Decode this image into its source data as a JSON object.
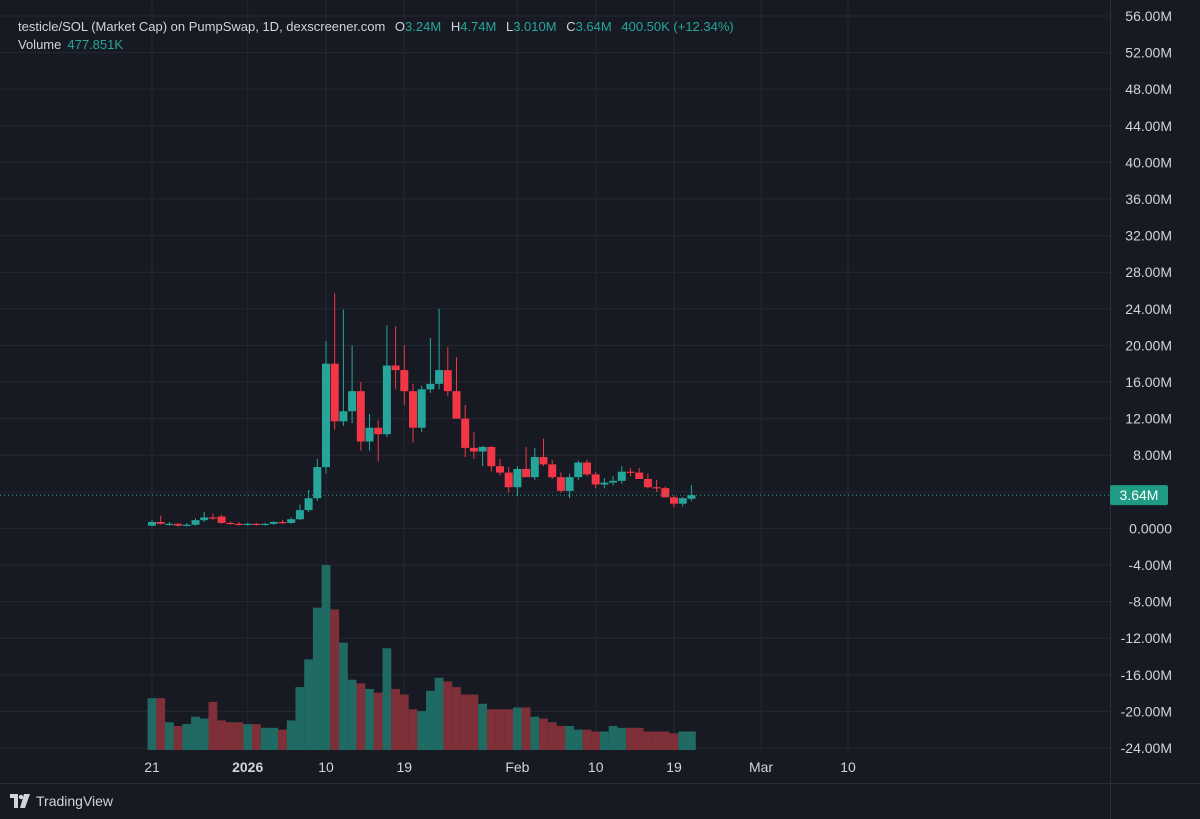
{
  "legend": {
    "title": "testicle/SOL (Market Cap) on PumpSwap, 1D, dexscreener.com",
    "open_label": "O",
    "open": "3.24M",
    "high_label": "H",
    "high": "4.74M",
    "low_label": "L",
    "low": "3.010M",
    "close_label": "C",
    "close": "3.64M",
    "change": "400.50K (+12.34%)",
    "volume_label": "Volume",
    "volume": "477.851K"
  },
  "footer": {
    "brand": "TradingView"
  },
  "colors": {
    "up": "#26a69a",
    "down": "#f23645",
    "up_vol": "#1f6b63",
    "down_vol": "#7e2f37",
    "grid": "#252833",
    "text": "#d1d4dc",
    "price_tag": "#1f9c83"
  },
  "chart_data": {
    "type": "candlestick",
    "price_axis": {
      "ylim": [
        -24000000,
        56000000
      ],
      "ticks": [
        56000000,
        52000000,
        48000000,
        44000000,
        40000000,
        36000000,
        32000000,
        28000000,
        24000000,
        20000000,
        16000000,
        12000000,
        8000000,
        4000000,
        0,
        -4000000,
        -8000000,
        -12000000,
        -16000000,
        -20000000,
        -24000000
      ],
      "tick_labels": [
        "56.00M",
        "52.00M",
        "48.00M",
        "44.00M",
        "40.00M",
        "36.00M",
        "32.00M",
        "28.00M",
        "24.00M",
        "20.00M",
        "16.00M",
        "12.00M",
        "8.00M",
        "",
        "0.0000",
        "-4.00M",
        "-8.00M",
        "-12.00M",
        "-16.00M",
        "-20.00M",
        "-24.00M"
      ]
    },
    "x_axis": {
      "labels": [
        {
          "label": "21",
          "day": 0,
          "bold": false
        },
        {
          "label": "2026",
          "day": 11,
          "bold": true
        },
        {
          "label": "10",
          "day": 20,
          "bold": false
        },
        {
          "label": "19",
          "day": 29,
          "bold": false
        },
        {
          "label": "Feb",
          "day": 42,
          "bold": false
        },
        {
          "label": "10",
          "day": 51,
          "bold": false
        },
        {
          "label": "19",
          "day": 60,
          "bold": false
        },
        {
          "label": "Mar",
          "day": 70,
          "bold": false
        },
        {
          "label": "10",
          "day": 80,
          "bold": false
        }
      ],
      "total_days": 86
    },
    "current_price": {
      "value": 3640000,
      "label": "3.64M"
    },
    "candles": [
      {
        "o": 0.3,
        "h": 0.9,
        "l": 0.2,
        "c": 0.7
      },
      {
        "o": 0.7,
        "h": 1.4,
        "l": 0.4,
        "c": 0.5
      },
      {
        "o": 0.5,
        "h": 0.7,
        "l": 0.3,
        "c": 0.5
      },
      {
        "o": 0.5,
        "h": 0.6,
        "l": 0.2,
        "c": 0.3
      },
      {
        "o": 0.3,
        "h": 0.6,
        "l": 0.2,
        "c": 0.4
      },
      {
        "o": 0.4,
        "h": 1.1,
        "l": 0.3,
        "c": 0.9
      },
      {
        "o": 0.9,
        "h": 1.8,
        "l": 0.7,
        "c": 1.2
      },
      {
        "o": 1.2,
        "h": 1.6,
        "l": 0.9,
        "c": 1.1
      },
      {
        "o": 1.3,
        "h": 1.5,
        "l": 0.5,
        "c": 0.6
      },
      {
        "o": 0.6,
        "h": 0.8,
        "l": 0.4,
        "c": 0.5
      },
      {
        "o": 0.5,
        "h": 0.7,
        "l": 0.3,
        "c": 0.4
      },
      {
        "o": 0.4,
        "h": 0.6,
        "l": 0.3,
        "c": 0.5
      },
      {
        "o": 0.5,
        "h": 0.6,
        "l": 0.3,
        "c": 0.4
      },
      {
        "o": 0.4,
        "h": 0.6,
        "l": 0.3,
        "c": 0.5
      },
      {
        "o": 0.5,
        "h": 0.8,
        "l": 0.4,
        "c": 0.7
      },
      {
        "o": 0.7,
        "h": 0.9,
        "l": 0.5,
        "c": 0.6
      },
      {
        "o": 0.6,
        "h": 1.2,
        "l": 0.5,
        "c": 1.0
      },
      {
        "o": 1.0,
        "h": 2.6,
        "l": 0.9,
        "c": 2.0
      },
      {
        "o": 2.0,
        "h": 4.2,
        "l": 1.8,
        "c": 3.3
      },
      {
        "o": 3.3,
        "h": 7.6,
        "l": 3.0,
        "c": 6.7
      },
      {
        "o": 6.7,
        "h": 20.5,
        "l": 6.0,
        "c": 18.0
      },
      {
        "o": 18.0,
        "h": 25.7,
        "l": 10.8,
        "c": 11.7
      },
      {
        "o": 11.7,
        "h": 23.9,
        "l": 11.2,
        "c": 12.8
      },
      {
        "o": 12.8,
        "h": 20.0,
        "l": 11.5,
        "c": 15.0
      },
      {
        "o": 15.0,
        "h": 16.0,
        "l": 8.5,
        "c": 9.5
      },
      {
        "o": 9.5,
        "h": 12.5,
        "l": 8.5,
        "c": 11.0
      },
      {
        "o": 11.0,
        "h": 11.8,
        "l": 7.3,
        "c": 10.3
      },
      {
        "o": 10.3,
        "h": 22.2,
        "l": 10.0,
        "c": 17.8
      },
      {
        "o": 17.8,
        "h": 22.1,
        "l": 15.2,
        "c": 17.3
      },
      {
        "o": 17.3,
        "h": 20.0,
        "l": 13.5,
        "c": 15.0
      },
      {
        "o": 15.0,
        "h": 15.8,
        "l": 9.4,
        "c": 11.0
      },
      {
        "o": 11.0,
        "h": 15.6,
        "l": 10.5,
        "c": 15.2
      },
      {
        "o": 15.2,
        "h": 20.8,
        "l": 14.8,
        "c": 15.8
      },
      {
        "o": 15.8,
        "h": 24.0,
        "l": 15.2,
        "c": 17.3
      },
      {
        "o": 17.3,
        "h": 19.8,
        "l": 14.5,
        "c": 15.0
      },
      {
        "o": 15.0,
        "h": 18.7,
        "l": 12.0,
        "c": 12.0
      },
      {
        "o": 12.0,
        "h": 13.5,
        "l": 7.8,
        "c": 8.8
      },
      {
        "o": 8.8,
        "h": 10.5,
        "l": 7.6,
        "c": 8.4
      },
      {
        "o": 8.4,
        "h": 9.0,
        "l": 6.8,
        "c": 8.9
      },
      {
        "o": 8.9,
        "h": 9.0,
        "l": 6.2,
        "c": 6.8
      },
      {
        "o": 6.8,
        "h": 7.6,
        "l": 5.8,
        "c": 6.1
      },
      {
        "o": 6.1,
        "h": 6.7,
        "l": 3.9,
        "c": 4.5
      },
      {
        "o": 4.5,
        "h": 6.8,
        "l": 3.5,
        "c": 6.5
      },
      {
        "o": 6.5,
        "h": 8.9,
        "l": 5.8,
        "c": 5.6
      },
      {
        "o": 5.6,
        "h": 8.8,
        "l": 5.3,
        "c": 7.8
      },
      {
        "o": 7.8,
        "h": 9.8,
        "l": 6.8,
        "c": 7.0
      },
      {
        "o": 7.0,
        "h": 7.5,
        "l": 5.4,
        "c": 5.6
      },
      {
        "o": 5.6,
        "h": 6.1,
        "l": 3.9,
        "c": 4.1
      },
      {
        "o": 4.1,
        "h": 6.0,
        "l": 3.3,
        "c": 5.6
      },
      {
        "o": 5.6,
        "h": 7.4,
        "l": 5.3,
        "c": 7.2
      },
      {
        "o": 7.2,
        "h": 7.5,
        "l": 5.7,
        "c": 5.9
      },
      {
        "o": 5.9,
        "h": 6.2,
        "l": 4.4,
        "c": 4.8
      },
      {
        "o": 4.8,
        "h": 5.5,
        "l": 4.4,
        "c": 5.0
      },
      {
        "o": 5.0,
        "h": 5.7,
        "l": 4.7,
        "c": 5.2
      },
      {
        "o": 5.2,
        "h": 6.8,
        "l": 4.9,
        "c": 6.2
      },
      {
        "o": 6.2,
        "h": 6.6,
        "l": 5.7,
        "c": 6.1
      },
      {
        "o": 6.1,
        "h": 6.6,
        "l": 5.5,
        "c": 5.4
      },
      {
        "o": 5.4,
        "h": 6.0,
        "l": 4.4,
        "c": 4.5
      },
      {
        "o": 4.5,
        "h": 5.3,
        "l": 4.0,
        "c": 4.4
      },
      {
        "o": 4.4,
        "h": 4.6,
        "l": 3.4,
        "c": 3.4
      },
      {
        "o": 3.4,
        "h": 3.6,
        "l": 2.3,
        "c": 2.7
      },
      {
        "o": 2.7,
        "h": 3.4,
        "l": 2.4,
        "c": 3.3
      },
      {
        "o": 3.24,
        "h": 4.74,
        "l": 3.01,
        "c": 3.64
      }
    ],
    "volume_scale_max": 100,
    "volumes": [
      28,
      28,
      15,
      13,
      14,
      18,
      17,
      26,
      16,
      15,
      15,
      14,
      14,
      12,
      12,
      11,
      16,
      34,
      49,
      77,
      100,
      76,
      58,
      38,
      36,
      33,
      31,
      55,
      33,
      30,
      22,
      21,
      32,
      39,
      37,
      34,
      30,
      30,
      25,
      22,
      22,
      22,
      23,
      23,
      18,
      17,
      15,
      13,
      13,
      11,
      11,
      10,
      10,
      13,
      12,
      12,
      12,
      10,
      10,
      10,
      9,
      10,
      10
    ]
  }
}
